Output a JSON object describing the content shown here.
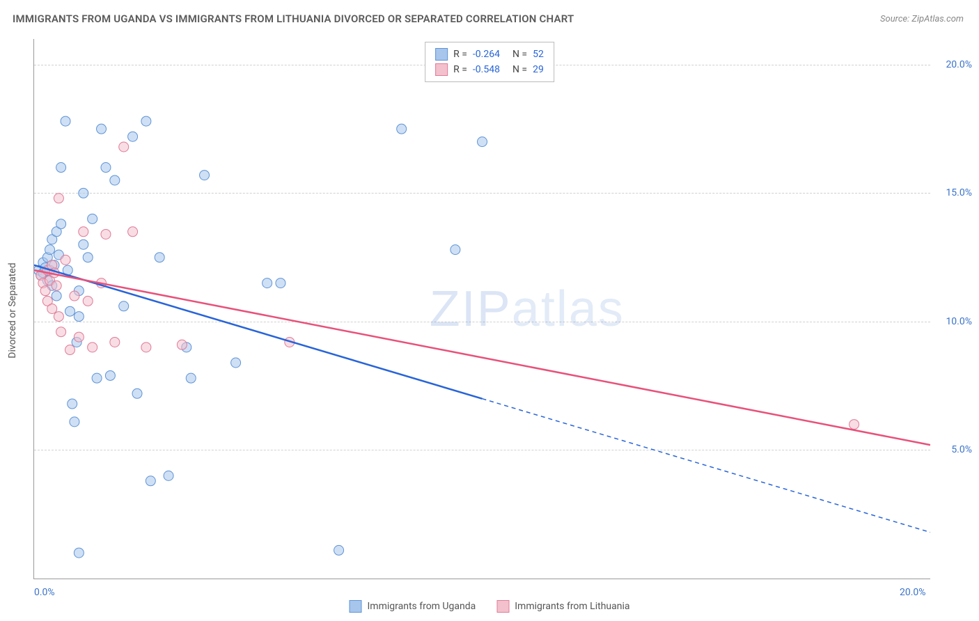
{
  "title": "IMMIGRANTS FROM UGANDA VS IMMIGRANTS FROM LITHUANIA DIVORCED OR SEPARATED CORRELATION CHART",
  "source": "Source: ZipAtlas.com",
  "watermark": "ZIPatlas",
  "chart": {
    "type": "scatter",
    "y_axis_label": "Divorced or Separated",
    "xlim": [
      0.0,
      20.0
    ],
    "ylim": [
      0.0,
      21.0
    ],
    "x_ticks": [
      {
        "v": 0.0,
        "label": "0.0%"
      },
      {
        "v": 20.0,
        "label": "20.0%"
      }
    ],
    "y_ticks": [
      {
        "v": 5.0,
        "label": "5.0%"
      },
      {
        "v": 10.0,
        "label": "10.0%"
      },
      {
        "v": 15.0,
        "label": "15.0%"
      },
      {
        "v": 20.0,
        "label": "20.0%"
      }
    ],
    "grid_color": "#d0d0d0",
    "background_color": "#ffffff",
    "marker_radius": 7,
    "marker_opacity": 0.55,
    "series": [
      {
        "name": "Immigrants from Uganda",
        "color_fill": "#a8c6ec",
        "color_stroke": "#5e93d6",
        "line_color": "#2864d8",
        "R": "-0.264",
        "N": "52",
        "trend": {
          "x1": 0.0,
          "y1": 12.2,
          "x2_solid": 10.0,
          "y2_solid": 7.0,
          "x2_dash": 20.0,
          "y2_dash": 1.8
        },
        "points": [
          [
            0.1,
            12.0
          ],
          [
            0.15,
            11.8
          ],
          [
            0.2,
            12.3
          ],
          [
            0.2,
            11.9
          ],
          [
            0.25,
            12.1
          ],
          [
            0.3,
            12.5
          ],
          [
            0.3,
            11.6
          ],
          [
            0.35,
            12.0
          ],
          [
            0.35,
            12.8
          ],
          [
            0.4,
            11.4
          ],
          [
            0.4,
            13.2
          ],
          [
            0.45,
            12.2
          ],
          [
            0.5,
            13.5
          ],
          [
            0.5,
            11.0
          ],
          [
            0.55,
            12.6
          ],
          [
            0.6,
            13.8
          ],
          [
            0.6,
            16.0
          ],
          [
            0.7,
            17.8
          ],
          [
            0.75,
            12.0
          ],
          [
            0.8,
            10.4
          ],
          [
            0.85,
            6.8
          ],
          [
            0.9,
            6.1
          ],
          [
            0.95,
            9.2
          ],
          [
            1.0,
            11.2
          ],
          [
            1.0,
            10.2
          ],
          [
            1.0,
            1.0
          ],
          [
            1.1,
            15.0
          ],
          [
            1.1,
            13.0
          ],
          [
            1.2,
            12.5
          ],
          [
            1.3,
            14.0
          ],
          [
            1.4,
            7.8
          ],
          [
            1.5,
            17.5
          ],
          [
            1.6,
            16.0
          ],
          [
            1.7,
            7.9
          ],
          [
            1.8,
            15.5
          ],
          [
            2.0,
            10.6
          ],
          [
            2.2,
            17.2
          ],
          [
            2.3,
            7.2
          ],
          [
            2.5,
            17.8
          ],
          [
            2.6,
            3.8
          ],
          [
            2.8,
            12.5
          ],
          [
            3.0,
            4.0
          ],
          [
            3.4,
            9.0
          ],
          [
            3.5,
            7.8
          ],
          [
            3.8,
            15.7
          ],
          [
            4.5,
            8.4
          ],
          [
            5.2,
            11.5
          ],
          [
            5.5,
            11.5
          ],
          [
            6.8,
            1.1
          ],
          [
            8.2,
            17.5
          ],
          [
            9.4,
            12.8
          ],
          [
            10.0,
            17.0
          ]
        ]
      },
      {
        "name": "Immigrants from Lithuania",
        "color_fill": "#f3c1cd",
        "color_stroke": "#e07a96",
        "line_color": "#e8517a",
        "R": "-0.548",
        "N": "29",
        "trend": {
          "x1": 0.0,
          "y1": 12.0,
          "x2_solid": 20.0,
          "y2_solid": 5.2,
          "x2_dash": 20.0,
          "y2_dash": 5.2
        },
        "points": [
          [
            0.15,
            11.8
          ],
          [
            0.2,
            11.5
          ],
          [
            0.25,
            11.2
          ],
          [
            0.3,
            12.0
          ],
          [
            0.3,
            10.8
          ],
          [
            0.35,
            11.6
          ],
          [
            0.4,
            12.2
          ],
          [
            0.4,
            10.5
          ],
          [
            0.45,
            11.9
          ],
          [
            0.5,
            11.4
          ],
          [
            0.55,
            10.2
          ],
          [
            0.55,
            14.8
          ],
          [
            0.6,
            9.6
          ],
          [
            0.7,
            12.4
          ],
          [
            0.8,
            8.9
          ],
          [
            0.9,
            11.0
          ],
          [
            1.0,
            9.4
          ],
          [
            1.1,
            13.5
          ],
          [
            1.2,
            10.8
          ],
          [
            1.3,
            9.0
          ],
          [
            1.5,
            11.5
          ],
          [
            1.6,
            13.4
          ],
          [
            1.8,
            9.2
          ],
          [
            2.0,
            16.8
          ],
          [
            2.2,
            13.5
          ],
          [
            2.5,
            9.0
          ],
          [
            3.3,
            9.1
          ],
          [
            5.7,
            9.2
          ],
          [
            18.3,
            6.0
          ]
        ]
      }
    ]
  },
  "legend_top": {
    "rows": [
      {
        "swatch_fill": "#a8c6ec",
        "swatch_stroke": "#5e93d6",
        "r_label": "R =",
        "r_val": "-0.264",
        "n_label": "N =",
        "n_val": "52"
      },
      {
        "swatch_fill": "#f3c1cd",
        "swatch_stroke": "#e07a96",
        "r_label": "R =",
        "r_val": "-0.548",
        "n_label": "N =",
        "n_val": "29"
      }
    ]
  },
  "legend_bottom": {
    "items": [
      {
        "swatch_fill": "#a8c6ec",
        "swatch_stroke": "#5e93d6",
        "label": "Immigrants from Uganda"
      },
      {
        "swatch_fill": "#f3c1cd",
        "swatch_stroke": "#e07a96",
        "label": "Immigrants from Lithuania"
      }
    ]
  }
}
